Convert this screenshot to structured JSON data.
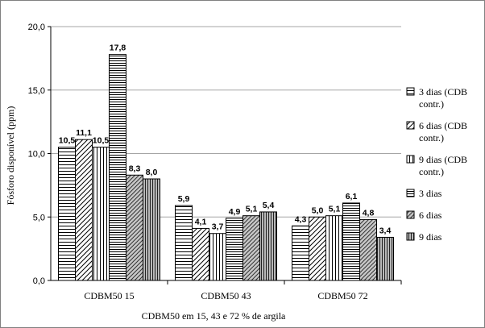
{
  "chart_data": {
    "type": "bar",
    "categories": [
      "CDBM50 15",
      "CDBM50 43",
      "CDBM50 72"
    ],
    "series": [
      {
        "name": "3 dias (CDB contr.)",
        "values": [
          10.5,
          5.9,
          4.3
        ],
        "labels": [
          "10,5",
          "5,9",
          "4,3"
        ],
        "pattern": "horizontal-lines"
      },
      {
        "name": "6 dias (CDB contr.)",
        "values": [
          11.1,
          4.1,
          5.0
        ],
        "labels": [
          "11,1",
          "4,1",
          "5,0"
        ],
        "pattern": "diagonal-lines"
      },
      {
        "name": "9 dias (CDB contr.)",
        "values": [
          10.5,
          3.7,
          5.1
        ],
        "labels": [
          "10,5",
          "3,7",
          "5,1"
        ],
        "pattern": "vertical-lines"
      },
      {
        "name": "3 dias",
        "values": [
          17.8,
          4.9,
          6.1
        ],
        "labels": [
          "17,8",
          "4,9",
          "6,1"
        ],
        "pattern": "horizontal-lines-dense"
      },
      {
        "name": "6 dias",
        "values": [
          8.3,
          5.1,
          4.8
        ],
        "labels": [
          "8,3",
          "5,1",
          "4,8"
        ],
        "pattern": "diagonal-lines-gray"
      },
      {
        "name": "9 dias",
        "values": [
          8.0,
          5.4,
          3.4
        ],
        "labels": [
          "8,0",
          "5,4",
          "3,4"
        ],
        "pattern": "vertical-lines-gray"
      }
    ],
    "xlabel": "CDBM50 em 15, 43 e 72 % de argila",
    "ylabel": "Fósforo disponível (ppm)",
    "ylim": [
      0,
      20
    ],
    "yticks": [
      0,
      5,
      10,
      15,
      20
    ],
    "ytick_labels": [
      "0,0",
      "5,0",
      "10,0",
      "15,0",
      "20,0"
    ],
    "grid": true,
    "legend_position": "right"
  }
}
